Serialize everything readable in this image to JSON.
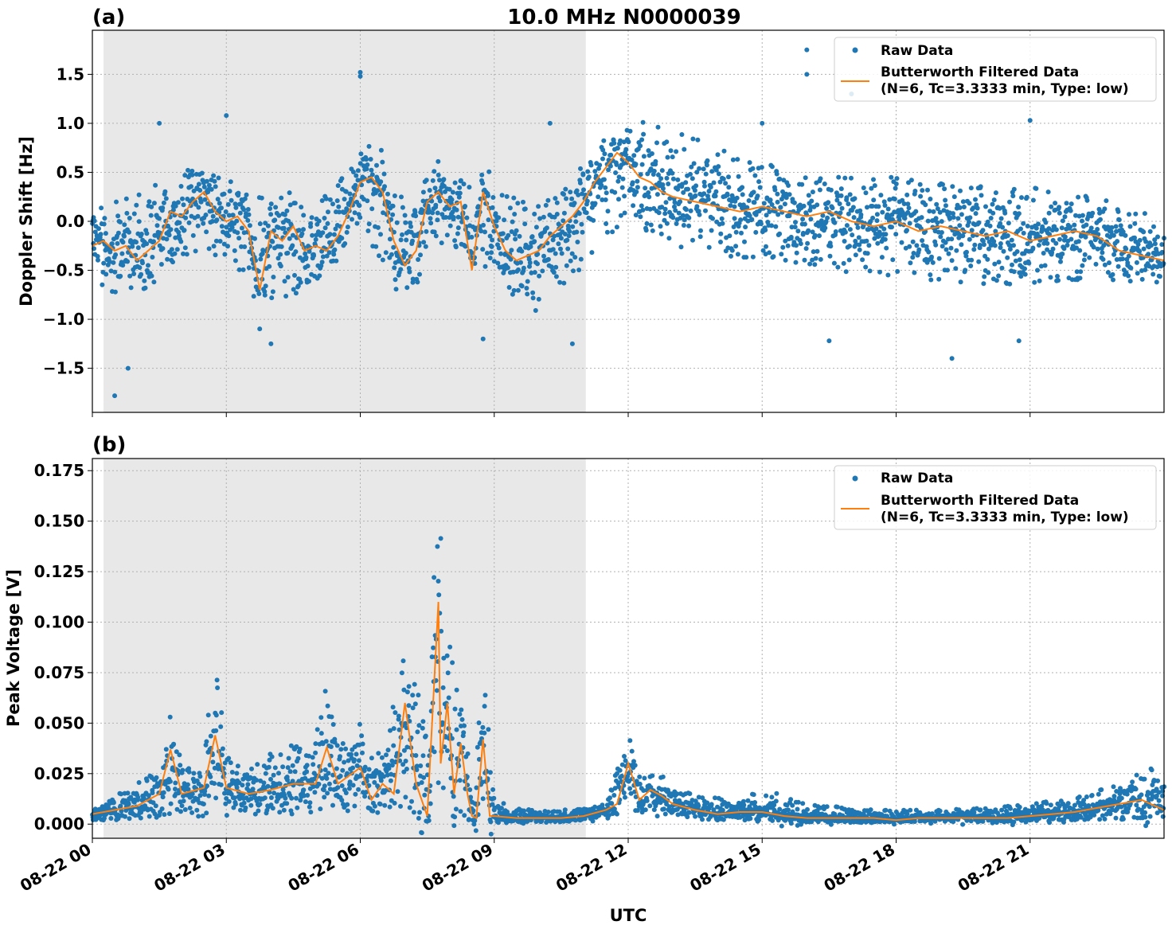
{
  "figure": {
    "title": "10.0 MHz N0000039",
    "xlabel": "UTC"
  },
  "legend": {
    "raw_label": "Raw Data",
    "filtered_label_line1": "Butterworth Filtered Data",
    "filtered_label_line2": "(N=6, Tc=3.3333 min, Type: low)"
  },
  "colors": {
    "raw": "#1f77b4",
    "filtered": "#ff7f0e",
    "shade": "#e8e8e8",
    "grid": "#b0b0b0"
  },
  "chart_data": [
    {
      "type": "scatter",
      "panel_label": "(a)",
      "ylabel": "Doppler Shift [Hz]",
      "xlim_hours": [
        0,
        24
      ],
      "ylim": [
        -1.95,
        1.95
      ],
      "x_ticks": [
        "08-22 00",
        "08-22 03",
        "08-22 06",
        "08-22 09",
        "08-22 12",
        "08-22 15",
        "08-22 18",
        "08-22 21"
      ],
      "y_ticks": [
        1.5,
        1.0,
        0.5,
        0.0,
        -0.5,
        -1.0,
        -1.5
      ],
      "y_tick_labels": [
        "1.5",
        "1.0",
        "0.5",
        "0.0",
        "−0.5",
        "−1.0",
        "−1.5"
      ],
      "shaded_span_hours": [
        0.25,
        11.05
      ],
      "grid": true,
      "legend_position": "top-right",
      "filtered_series": {
        "x_hours": [
          0,
          0.25,
          0.5,
          0.75,
          1,
          1.25,
          1.5,
          1.75,
          2,
          2.25,
          2.5,
          2.75,
          3,
          3.25,
          3.5,
          3.75,
          4,
          4.25,
          4.5,
          4.75,
          5,
          5.25,
          5.5,
          5.75,
          6,
          6.25,
          6.5,
          6.75,
          7,
          7.25,
          7.5,
          7.75,
          8,
          8.25,
          8.5,
          8.75,
          9,
          9.25,
          9.5,
          9.75,
          10,
          10.25,
          10.5,
          10.75,
          11,
          11.25,
          11.5,
          11.75,
          12,
          12.25,
          12.5,
          12.75,
          13,
          13.5,
          14,
          14.5,
          15,
          15.5,
          16,
          16.5,
          17,
          17.5,
          18,
          18.5,
          19,
          19.5,
          20,
          20.5,
          21,
          21.5,
          22,
          22.5,
          23,
          23.5,
          24
        ],
        "y": [
          -0.25,
          -0.2,
          -0.3,
          -0.25,
          -0.4,
          -0.3,
          -0.2,
          0.1,
          0.05,
          0.2,
          0.3,
          0.1,
          0.0,
          0.05,
          -0.1,
          -0.7,
          -0.1,
          -0.2,
          -0.05,
          -0.3,
          -0.25,
          -0.3,
          -0.15,
          0.1,
          0.4,
          0.45,
          0.3,
          -0.2,
          -0.45,
          -0.3,
          0.2,
          0.3,
          0.15,
          0.2,
          -0.5,
          0.3,
          -0.05,
          -0.3,
          -0.4,
          -0.35,
          -0.3,
          -0.15,
          -0.05,
          0.05,
          0.2,
          0.4,
          0.55,
          0.7,
          0.6,
          0.45,
          0.4,
          0.3,
          0.25,
          0.2,
          0.15,
          0.1,
          0.15,
          0.1,
          0.05,
          0.1,
          0.0,
          -0.05,
          0.0,
          -0.1,
          -0.05,
          -0.1,
          -0.15,
          -0.1,
          -0.2,
          -0.15,
          -0.1,
          -0.15,
          -0.3,
          -0.35,
          -0.4
        ]
      },
      "scatter_envelope": {
        "x_hours": [
          0,
          1,
          2,
          3,
          4,
          5,
          6,
          7,
          8,
          9,
          10,
          11,
          12,
          13,
          14,
          15,
          16,
          17,
          18,
          19,
          20,
          21,
          22,
          23,
          24
        ],
        "low": [
          -0.7,
          -0.8,
          -0.35,
          -0.35,
          -0.9,
          -0.65,
          -0.1,
          -0.75,
          -0.3,
          -0.55,
          -0.95,
          -0.45,
          0.0,
          -0.25,
          -0.35,
          -0.4,
          -0.45,
          -0.55,
          -0.6,
          -0.6,
          -0.65,
          -0.65,
          -0.6,
          -0.6,
          -0.7
        ],
        "high": [
          0.1,
          0.3,
          0.55,
          0.45,
          0.25,
          0.15,
          0.65,
          0.45,
          0.45,
          0.4,
          0.15,
          0.55,
          1.05,
          0.95,
          0.75,
          0.6,
          0.5,
          0.45,
          0.45,
          0.4,
          0.35,
          0.35,
          0.3,
          0.2,
          0.0
        ]
      },
      "outliers": [
        [
          0.5,
          -1.78
        ],
        [
          0.8,
          -1.5
        ],
        [
          1.5,
          1.0
        ],
        [
          3.0,
          1.08
        ],
        [
          4.0,
          -1.25
        ],
        [
          6.0,
          1.52
        ],
        [
          6.0,
          1.48
        ],
        [
          8.75,
          -1.2
        ],
        [
          10.75,
          -1.25
        ],
        [
          10.25,
          1.0
        ],
        [
          16.0,
          1.75
        ],
        [
          16.0,
          1.5
        ],
        [
          16.5,
          -1.22
        ],
        [
          19.25,
          -1.4
        ],
        [
          21.0,
          1.03
        ],
        [
          20.75,
          -1.22
        ],
        [
          17.0,
          1.3
        ],
        [
          15.0,
          1.0
        ]
      ]
    },
    {
      "type": "scatter",
      "panel_label": "(b)",
      "ylabel": "Peak Voltage [V]",
      "xlim_hours": [
        0,
        24
      ],
      "ylim": [
        -0.007,
        0.181
      ],
      "x_ticks": [
        "08-22 00",
        "08-22 03",
        "08-22 06",
        "08-22 09",
        "08-22 12",
        "08-22 15",
        "08-22 18",
        "08-22 21"
      ],
      "y_ticks": [
        0.175,
        0.15,
        0.125,
        0.1,
        0.075,
        0.05,
        0.025,
        0.0
      ],
      "y_tick_labels": [
        "0.175",
        "0.150",
        "0.125",
        "0.100",
        "0.075",
        "0.050",
        "0.025",
        "0.000"
      ],
      "shaded_span_hours": [
        0.25,
        11.05
      ],
      "grid": true,
      "legend_position": "top-right",
      "filtered_series": {
        "x_hours": [
          0,
          0.5,
          1,
          1.5,
          1.75,
          2,
          2.5,
          2.75,
          3,
          3.5,
          4,
          4.5,
          5,
          5.25,
          5.5,
          6,
          6.25,
          6.5,
          6.75,
          7,
          7.25,
          7.5,
          7.75,
          7.8,
          7.95,
          8.1,
          8.25,
          8.4,
          8.5,
          8.6,
          8.75,
          8.9,
          9,
          9.5,
          10,
          10.5,
          11,
          11.5,
          11.75,
          12,
          12.25,
          12.5,
          12.75,
          13,
          13.5,
          14,
          14.5,
          15,
          15.5,
          16,
          16.5,
          17,
          17.5,
          18,
          18.5,
          19,
          19.5,
          20,
          20.5,
          21,
          21.5,
          22,
          22.5,
          23,
          23.5,
          24
        ],
        "y": [
          0.005,
          0.007,
          0.009,
          0.015,
          0.037,
          0.015,
          0.018,
          0.044,
          0.018,
          0.015,
          0.017,
          0.02,
          0.02,
          0.038,
          0.02,
          0.028,
          0.012,
          0.02,
          0.015,
          0.06,
          0.02,
          0.004,
          0.11,
          0.03,
          0.06,
          0.015,
          0.04,
          0.015,
          0.004,
          0.003,
          0.042,
          0.004,
          0.004,
          0.003,
          0.003,
          0.003,
          0.004,
          0.007,
          0.01,
          0.03,
          0.012,
          0.017,
          0.014,
          0.01,
          0.007,
          0.005,
          0.006,
          0.006,
          0.004,
          0.003,
          0.003,
          0.003,
          0.003,
          0.002,
          0.003,
          0.003,
          0.003,
          0.003,
          0.003,
          0.004,
          0.005,
          0.006,
          0.008,
          0.01,
          0.012,
          0.007
        ]
      },
      "scatter_envelope": {
        "x_hours": [
          0,
          0.5,
          1,
          1.5,
          1.75,
          2,
          2.5,
          2.75,
          3,
          3.5,
          4,
          4.5,
          5,
          5.25,
          5.5,
          6,
          6.5,
          7,
          7.5,
          7.75,
          8,
          8.25,
          8.5,
          8.75,
          9,
          9.5,
          10,
          10.5,
          11,
          11.5,
          12,
          12.25,
          12.5,
          13,
          13.5,
          14,
          14.5,
          15,
          16,
          17,
          18,
          19,
          20,
          21,
          22,
          23,
          23.5,
          24
        ],
        "low": [
          0.002,
          0.002,
          0.002,
          0.003,
          0.005,
          0.003,
          0.004,
          0.01,
          0.005,
          0.004,
          0.005,
          0.005,
          0.005,
          0.01,
          0.005,
          0.007,
          0.004,
          0.005,
          0.0,
          0.02,
          0.002,
          0.005,
          0.0,
          0.005,
          0.001,
          0.001,
          0.001,
          0.001,
          0.001,
          0.002,
          0.006,
          0.003,
          0.004,
          0.003,
          0.002,
          0.002,
          0.002,
          0.002,
          0.001,
          0.001,
          0.001,
          0.001,
          0.001,
          0.001,
          0.002,
          0.002,
          0.003,
          0.002
        ],
        "high": [
          0.012,
          0.015,
          0.022,
          0.03,
          0.055,
          0.03,
          0.035,
          0.09,
          0.035,
          0.03,
          0.035,
          0.04,
          0.045,
          0.07,
          0.04,
          0.05,
          0.035,
          0.095,
          0.05,
          0.17,
          0.09,
          0.075,
          0.015,
          0.08,
          0.012,
          0.008,
          0.007,
          0.007,
          0.008,
          0.015,
          0.045,
          0.025,
          0.028,
          0.02,
          0.014,
          0.013,
          0.012,
          0.018,
          0.01,
          0.008,
          0.007,
          0.007,
          0.008,
          0.01,
          0.013,
          0.02,
          0.03,
          0.025
        ]
      }
    }
  ]
}
